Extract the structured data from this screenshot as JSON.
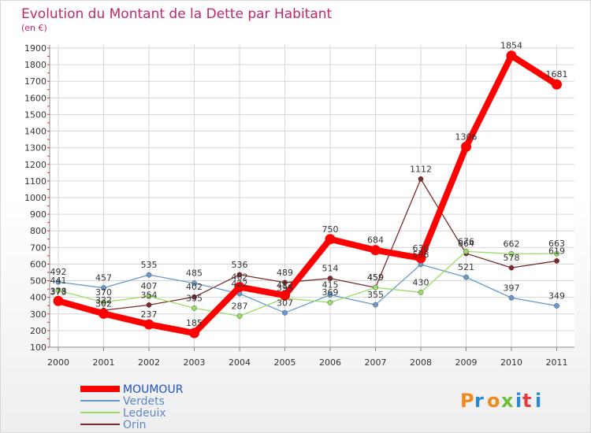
{
  "title": "Evolution du Montant de la Dette par Habitant",
  "subtitle": "(en €)",
  "logo_text": "Proxiti",
  "chart_data": {
    "type": "line",
    "title": "Evolution du Montant de la Dette par Habitant",
    "subtitle": "(en €)",
    "x": [
      "2000",
      "2001",
      "2002",
      "2003",
      "2004",
      "2005",
      "2006",
      "2007",
      "2008",
      "2009",
      "2010",
      "2011"
    ],
    "ylim": [
      100,
      1900
    ],
    "yticks": [
      100,
      200,
      300,
      400,
      500,
      600,
      700,
      800,
      900,
      1000,
      1100,
      1200,
      1300,
      1400,
      1500,
      1600,
      1700,
      1800,
      1900
    ],
    "grid": true,
    "legend_position": "bottom-left",
    "series": [
      {
        "name": "MOUMOUR",
        "color": "#ff0000",
        "values": [
          378,
          302,
          237,
          185,
          462,
          412,
          750,
          684,
          636,
          1306,
          1854,
          1681
        ],
        "labels": [
          "378",
          "302",
          "237",
          "185",
          "462",
          "412",
          "750",
          "684",
          "636",
          "1306",
          "1854",
          "1681"
        ]
      },
      {
        "name": "Verdets",
        "color": "#6699cc",
        "values": [
          492,
          457,
          535,
          485,
          422,
          307,
          415,
          355,
          598,
          521,
          397,
          349
        ],
        "labels": [
          "492",
          "457",
          "535",
          "485",
          "422",
          "307",
          "415",
          "355",
          "598",
          "521",
          "397",
          "349"
        ]
      },
      {
        "name": "Ledeuix",
        "color": "#99dd66",
        "values": [
          441,
          370,
          407,
          335,
          287,
          395,
          369,
          459,
          430,
          676,
          662,
          663
        ],
        "labels": [
          "441",
          "370",
          "407",
          "335",
          "287",
          "395",
          "369",
          "459",
          "430",
          "676",
          "662",
          "663"
        ]
      },
      {
        "name": "Orin",
        "color": "#7a2a2a",
        "values": [
          373,
          322,
          354,
          402,
          536,
          489,
          514,
          459,
          1112,
          664,
          578,
          619
        ],
        "labels": [
          "373",
          "322",
          "354",
          "402",
          "536",
          "489",
          "514",
          "459",
          "1112",
          "664",
          "578",
          "619"
        ]
      }
    ]
  }
}
